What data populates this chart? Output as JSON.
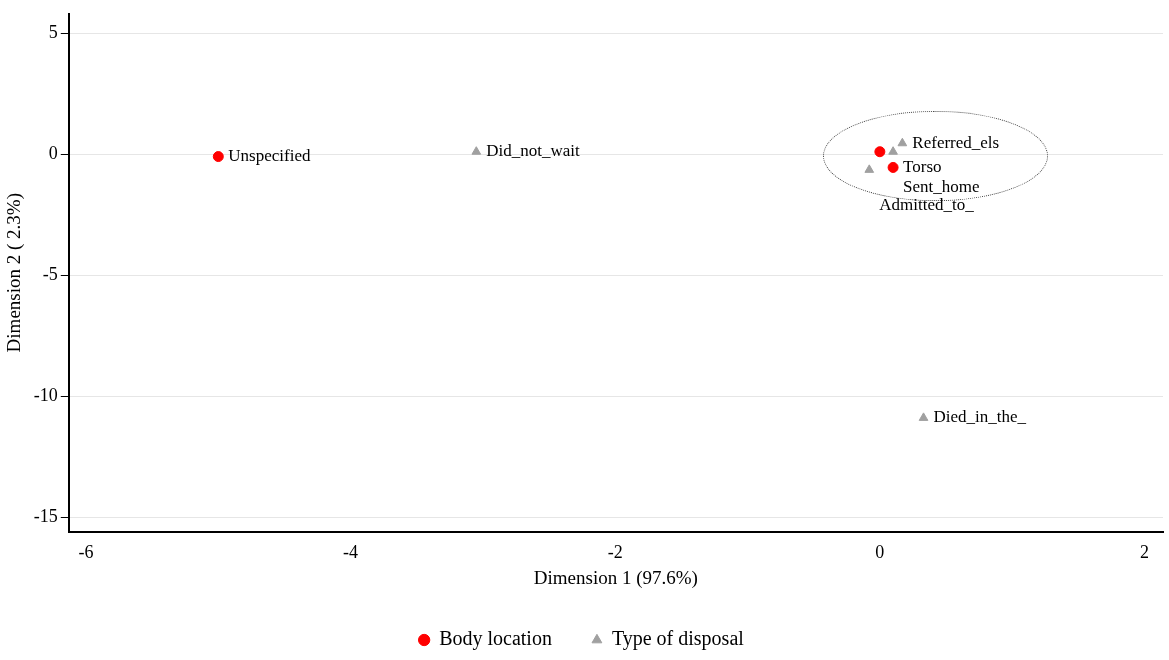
{
  "chart_data": {
    "type": "scatter",
    "xlabel": "Dimension 1 (97.6%)",
    "ylabel": "Dimension 2 ( 2.3%)",
    "series": [
      {
        "name": "Body location",
        "color": "#ff0000",
        "marker": "circle",
        "x": [
          -5.0,
          0.0,
          0.1
        ],
        "values": [
          -0.1,
          0.1,
          -0.55
        ]
      },
      {
        "name": "Type of disposal",
        "color": "#a0a0a0",
        "marker": "triangle",
        "x": [
          -3.05,
          0.1,
          0.17,
          -0.08,
          0.33
        ],
        "values": [
          0.1,
          0.1,
          0.45,
          -0.65,
          -10.9
        ]
      }
    ],
    "annotations": [
      {
        "text": "Unspecified",
        "x": -5.0,
        "y": -0.1
      },
      {
        "text": "Torso",
        "x": 0.1,
        "y": -0.55
      },
      {
        "text": "Did_not_wait",
        "x": -3.05,
        "y": 0.1
      },
      {
        "text": "Sent_home",
        "x": 0.1,
        "y": 0.1
      },
      {
        "text": "Referred_els",
        "x": 0.17,
        "y": 0.45
      },
      {
        "text": "Admitted_to_",
        "x": -0.08,
        "y": -0.65
      },
      {
        "text": "Died_in_the_",
        "x": 0.33,
        "y": -10.9
      }
    ],
    "xlim": [
      -6.13,
      2.14
    ],
    "xticks": [
      -6,
      -4,
      -2,
      0,
      2
    ],
    "ylim": [
      -15.6,
      5.8
    ],
    "yticks": [
      -15,
      -10,
      -5,
      0,
      5
    ],
    "grid": "y",
    "legend": "bottom"
  }
}
